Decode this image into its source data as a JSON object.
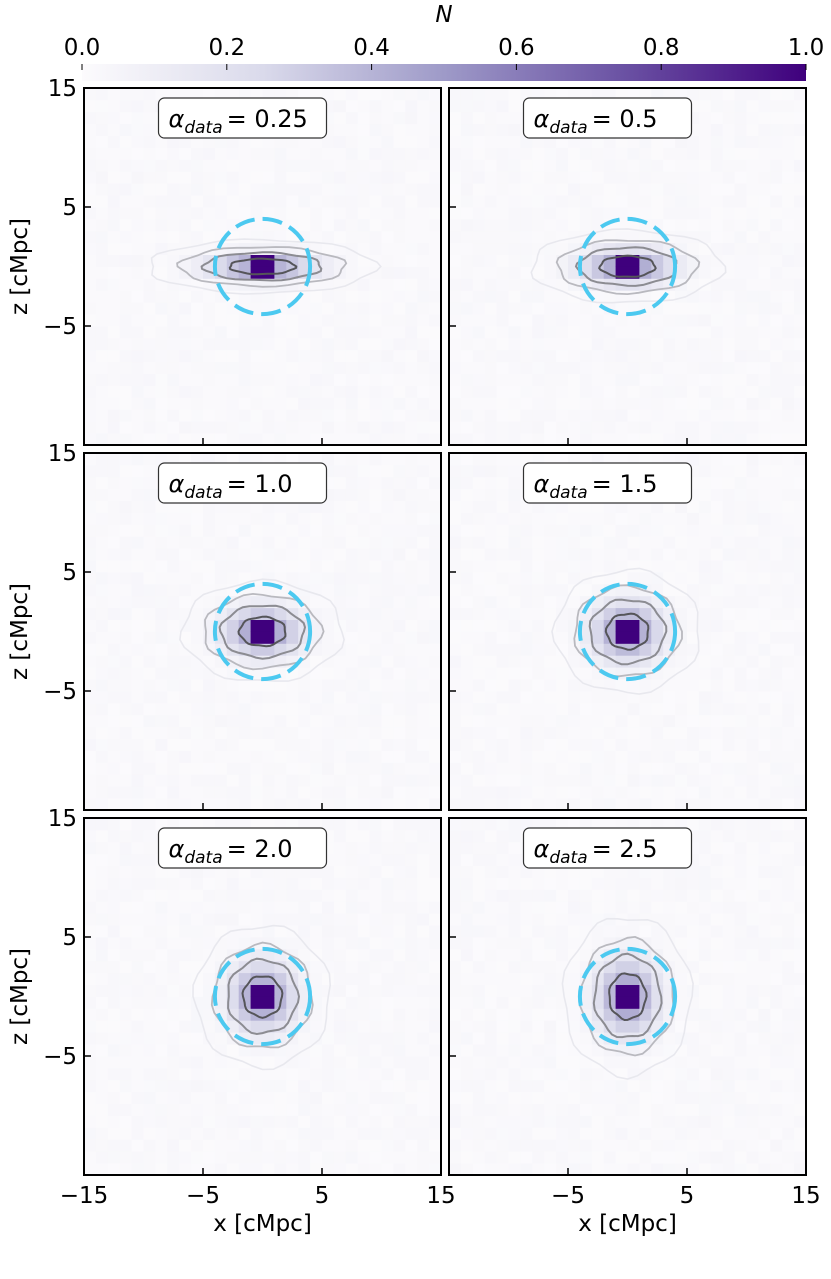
{
  "chart_data": {
    "type": "heatmap",
    "title": "",
    "xlabel": "x [cMpc]",
    "ylabel": "z [cMpc]",
    "xlim": [
      -15,
      15
    ],
    "ylim": [
      -15,
      15
    ],
    "xticks": [
      -15,
      -5,
      5,
      15
    ],
    "yticks": [
      -5,
      5,
      15
    ],
    "xtick_labels": [
      "−15",
      "−5",
      "5",
      "15"
    ],
    "ytick_labels": [
      "−5",
      "5",
      "15"
    ],
    "colorbar": {
      "label": "N",
      "range": [
        0.0,
        1.0
      ],
      "ticks": [
        "0.0",
        "0.2",
        "0.4",
        "0.6",
        "0.8",
        "1.0"
      ],
      "placement": "top",
      "cmap_low": "#fcfbfd",
      "cmap_high": "#3f007d"
    },
    "contour_colors": [
      "#e8e8ee",
      "#b9b9bf",
      "#8c8c92",
      "#555559"
    ],
    "reference_circle_color": "#4cc9f0",
    "panels": [
      {
        "label_prefix": "α",
        "label_sub": "data",
        "label_value": "= 0.25",
        "alpha": 0.25,
        "circle_radius": 4.0
      },
      {
        "label_prefix": "α",
        "label_sub": "data",
        "label_value": "= 0.5",
        "alpha": 0.5,
        "circle_radius": 4.0
      },
      {
        "label_prefix": "α",
        "label_sub": "data",
        "label_value": "= 1.0",
        "alpha": 1.0,
        "circle_radius": 4.0
      },
      {
        "label_prefix": "α",
        "label_sub": "data",
        "label_value": "= 1.5",
        "alpha": 1.5,
        "circle_radius": 4.0
      },
      {
        "label_prefix": "α",
        "label_sub": "data",
        "label_value": "= 2.0",
        "alpha": 2.0,
        "circle_radius": 4.0
      },
      {
        "label_prefix": "α",
        "label_sub": "data",
        "label_value": "= 2.5",
        "alpha": 2.5,
        "circle_radius": 4.0
      }
    ]
  }
}
